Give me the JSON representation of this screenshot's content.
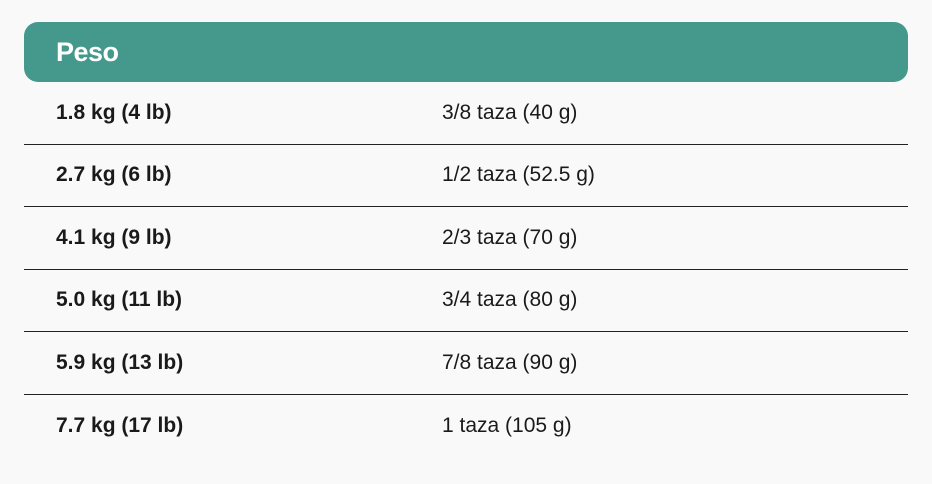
{
  "header": {
    "title": "Peso",
    "color": "#44998c"
  },
  "rows": [
    {
      "weight": "1.8 kg (4 lb)",
      "amount": "3/8 taza (40 g)"
    },
    {
      "weight": "2.7 kg (6 lb)",
      "amount": "1/2 taza (52.5 g)"
    },
    {
      "weight": "4.1 kg (9 lb)",
      "amount": "2/3 taza (70 g)"
    },
    {
      "weight": "5.0 kg (11 lb)",
      "amount": "3/4 taza (80 g)"
    },
    {
      "weight": "5.9 kg (13 lb)",
      "amount": "7/8 taza (90 g)"
    },
    {
      "weight": "7.7 kg (17 lb)",
      "amount": "1 taza (105 g)"
    }
  ]
}
